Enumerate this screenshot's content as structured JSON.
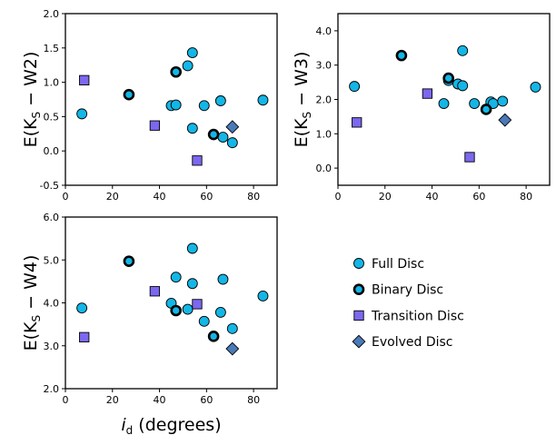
{
  "colors": {
    "full_disc": "#13b6e6",
    "transition_disc": "#7b68ee",
    "evolved_disc": "#4a7ab8",
    "edge": "#000000"
  },
  "chart_data": [
    {
      "type": "scatter",
      "ylabel_main": "E(K",
      "ylabel_sub": "S",
      "ylabel_rest": " − W2)",
      "xlim": [
        0,
        90
      ],
      "ylim": [
        -0.5,
        2.0
      ],
      "xticks": [
        "0",
        "20",
        "40",
        "60",
        "80"
      ],
      "yticks": [
        "-0.5",
        "0.0",
        "0.5",
        "1.0",
        "1.5",
        "2.0"
      ],
      "series": [
        {
          "key": "full",
          "points": [
            [
              7,
              0.54
            ],
            [
              45,
              0.66
            ],
            [
              47,
              0.67
            ],
            [
              52,
              1.24
            ],
            [
              54,
              1.43
            ],
            [
              54,
              0.33
            ],
            [
              59,
              0.66
            ],
            [
              66,
              0.73
            ],
            [
              67,
              0.2
            ],
            [
              71,
              0.12
            ],
            [
              84,
              0.74
            ]
          ]
        },
        {
          "key": "binary",
          "points": [
            [
              27,
              0.82
            ],
            [
              47,
              1.15
            ],
            [
              63,
              0.24
            ]
          ]
        },
        {
          "key": "transition",
          "points": [
            [
              8,
              1.03
            ],
            [
              38,
              0.37
            ],
            [
              56,
              -0.14
            ]
          ]
        },
        {
          "key": "evolved",
          "points": [
            [
              71,
              0.35
            ]
          ]
        }
      ]
    },
    {
      "type": "scatter",
      "ylabel_main": "E(K",
      "ylabel_sub": "S",
      "ylabel_rest": " − W3)",
      "xlim": [
        0,
        90
      ],
      "ylim": [
        -0.5,
        4.5
      ],
      "xticks": [
        "0",
        "20",
        "40",
        "60",
        "80"
      ],
      "yticks": [
        "0.0",
        "1.0",
        "2.0",
        "3.0",
        "4.0"
      ],
      "series": [
        {
          "key": "full",
          "points": [
            [
              7,
              2.38
            ],
            [
              45,
              1.88
            ],
            [
              47,
              2.55
            ],
            [
              51,
              2.45
            ],
            [
              53,
              2.4
            ],
            [
              53,
              3.42
            ],
            [
              58,
              1.88
            ],
            [
              65,
              1.93
            ],
            [
              66,
              1.88
            ],
            [
              70,
              1.95
            ],
            [
              84,
              2.36
            ]
          ]
        },
        {
          "key": "binary",
          "points": [
            [
              27,
              3.28
            ],
            [
              47,
              2.62
            ],
            [
              63,
              1.71
            ]
          ]
        },
        {
          "key": "transition",
          "points": [
            [
              8,
              1.33
            ],
            [
              38,
              2.17
            ],
            [
              56,
              0.32
            ]
          ]
        },
        {
          "key": "evolved",
          "points": [
            [
              71,
              1.4
            ]
          ]
        }
      ]
    },
    {
      "type": "scatter",
      "ylabel_main": "E(K",
      "ylabel_sub": "S",
      "ylabel_rest": " − W4)",
      "xlabel_main": "i",
      "xlabel_sub": "d",
      "xlabel_rest": " (degrees)",
      "xlim": [
        0,
        90
      ],
      "ylim": [
        2.0,
        6.0
      ],
      "xticks": [
        "0",
        "20",
        "40",
        "60",
        "80"
      ],
      "yticks": [
        "2.0",
        "3.0",
        "4.0",
        "5.0",
        "6.0"
      ],
      "series": [
        {
          "key": "full",
          "points": [
            [
              7,
              3.88
            ],
            [
              45,
              3.99
            ],
            [
              47,
              4.6
            ],
            [
              52,
              3.85
            ],
            [
              54,
              4.45
            ],
            [
              54,
              5.27
            ],
            [
              59,
              3.57
            ],
            [
              66,
              3.78
            ],
            [
              67,
              4.55
            ],
            [
              71,
              3.4
            ],
            [
              84,
              4.16
            ]
          ]
        },
        {
          "key": "binary",
          "points": [
            [
              27,
              4.97
            ],
            [
              47,
              3.82
            ],
            [
              63,
              3.22
            ]
          ]
        },
        {
          "key": "transition",
          "points": [
            [
              8,
              3.2
            ],
            [
              38,
              4.27
            ],
            [
              56,
              3.97
            ]
          ]
        },
        {
          "key": "evolved",
          "points": [
            [
              71,
              2.93
            ]
          ]
        }
      ]
    }
  ],
  "legend": {
    "placement": "lower-right",
    "items": [
      {
        "key": "full",
        "label": "Full Disc"
      },
      {
        "key": "binary",
        "label": "Binary Disc"
      },
      {
        "key": "transition",
        "label": "Transition Disc"
      },
      {
        "key": "evolved",
        "label": "Evolved Disc"
      }
    ]
  }
}
